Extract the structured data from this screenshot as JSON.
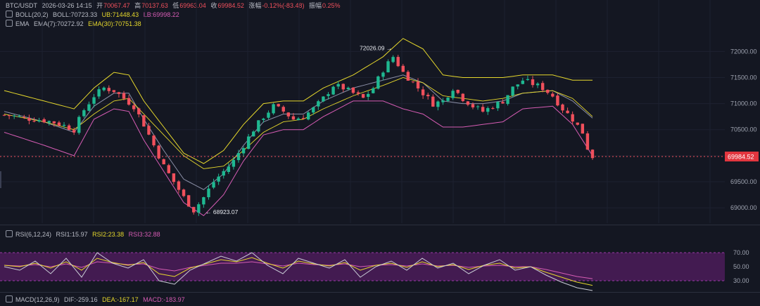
{
  "header": {
    "symbol": "BTC/USDT",
    "datetime": "2026-03-26 14:15",
    "open_label": "开",
    "open_value": "70067.47",
    "high_label": "高",
    "high_value": "70137.63",
    "low_label": "低",
    "low_value": "69963.04",
    "close_label": "收",
    "close_value": "69984.52",
    "change_label": "涨幅",
    "change_value": "-0.12%(-83.48)",
    "amplitude_label": "振幅",
    "amplitude_value": "0.25%"
  },
  "indicators": {
    "boll": {
      "name": "BOLL(20,2)",
      "mid": "BOLL:70723.33",
      "ub": "UB:71448.43",
      "lb": "LB:69998.22"
    },
    "ema": {
      "name": "EMA",
      "ema7": "EMA(7):70272.92",
      "ema30": "EMA(30):70751.38"
    },
    "rsi": {
      "name": "RSI(6,12,24)",
      "rsi1": "RSI1:15.97",
      "rsi2": "RSI2:23.38",
      "rsi3": "RSI3:32.88"
    },
    "macd": {
      "name": "MACD(12,26,9)",
      "dif": "DIF:-259.16",
      "dea": "DEA:-167.17",
      "macd": "MACD:-183.97"
    }
  },
  "colors": {
    "background": "#141722",
    "up": "#1fb891",
    "down": "#f0505c",
    "boll_band": "#e6d82c",
    "boll_lower": "#d65cb4",
    "ema_line": "#8c90a8",
    "rsi_band": "#6a1f78"
  },
  "chart_data": {
    "type": "candlestick",
    "price_axis_ticks": [
      "72000.00",
      "71500.00",
      "71000.00",
      "70500.00",
      "70000.00",
      "69500.00",
      "69000.00"
    ],
    "price_range": [
      68880,
      72450
    ],
    "current_price": "69984.52",
    "annotations": {
      "high": {
        "text": "72026.09 →",
        "value": 72026.09
      },
      "low": {
        "text": "← 68923.07",
        "value": 68923.07
      }
    },
    "close_path": [
      [
        0,
        70780
      ],
      [
        2,
        70760
      ],
      [
        4,
        70720
      ],
      [
        6,
        70700
      ],
      [
        8,
        70680
      ],
      [
        10,
        70640
      ],
      [
        12,
        70580
      ],
      [
        14,
        70500
      ],
      [
        16,
        70880
      ],
      [
        18,
        71150
      ],
      [
        20,
        71300
      ],
      [
        22,
        71250
      ],
      [
        24,
        71100
      ],
      [
        26,
        70950
      ],
      [
        28,
        70600
      ],
      [
        30,
        70200
      ],
      [
        32,
        69800
      ],
      [
        34,
        69500
      ],
      [
        36,
        69200
      ],
      [
        38,
        68950
      ],
      [
        40,
        69200
      ],
      [
        42,
        69500
      ],
      [
        44,
        69700
      ],
      [
        46,
        69900
      ],
      [
        48,
        70200
      ],
      [
        50,
        70500
      ],
      [
        52,
        70750
      ],
      [
        54,
        70950
      ],
      [
        56,
        70850
      ],
      [
        58,
        70700
      ],
      [
        60,
        70750
      ],
      [
        62,
        70900
      ],
      [
        64,
        71100
      ],
      [
        66,
        71350
      ],
      [
        68,
        71300
      ],
      [
        70,
        71200
      ],
      [
        72,
        71100
      ],
      [
        74,
        71300
      ],
      [
        76,
        71650
      ],
      [
        78,
        71900
      ],
      [
        80,
        71600
      ],
      [
        82,
        71400
      ],
      [
        84,
        71200
      ],
      [
        86,
        71000
      ],
      [
        88,
        71050
      ],
      [
        90,
        71300
      ],
      [
        92,
        71100
      ],
      [
        94,
        70950
      ],
      [
        96,
        70850
      ],
      [
        98,
        70950
      ],
      [
        100,
        71050
      ],
      [
        102,
        71300
      ],
      [
        104,
        71450
      ],
      [
        106,
        71380
      ],
      [
        108,
        71300
      ],
      [
        110,
        71150
      ],
      [
        112,
        70900
      ],
      [
        114,
        70700
      ],
      [
        116,
        70450
      ],
      [
        117,
        70150
      ],
      [
        118,
        69984.52
      ]
    ],
    "bands": {
      "upper": [
        [
          0,
          71250
        ],
        [
          8,
          71050
        ],
        [
          14,
          70900
        ],
        [
          18,
          71300
        ],
        [
          22,
          71600
        ],
        [
          25,
          71550
        ],
        [
          28,
          71050
        ],
        [
          32,
          70550
        ],
        [
          36,
          70050
        ],
        [
          40,
          69850
        ],
        [
          44,
          70100
        ],
        [
          48,
          70600
        ],
        [
          52,
          71000
        ],
        [
          56,
          71050
        ],
        [
          60,
          71050
        ],
        [
          64,
          71300
        ],
        [
          70,
          71550
        ],
        [
          76,
          71900
        ],
        [
          80,
          72250
        ],
        [
          84,
          72050
        ],
        [
          88,
          71550
        ],
        [
          92,
          71500
        ],
        [
          96,
          71500
        ],
        [
          100,
          71500
        ],
        [
          104,
          71550
        ],
        [
          110,
          71550
        ],
        [
          114,
          71450
        ],
        [
          118,
          71448.43
        ]
      ],
      "lower": [
        [
          0,
          70450
        ],
        [
          8,
          70200
        ],
        [
          14,
          70000
        ],
        [
          18,
          70700
        ],
        [
          22,
          70900
        ],
        [
          25,
          70850
        ],
        [
          28,
          70300
        ],
        [
          32,
          69700
        ],
        [
          36,
          69100
        ],
        [
          40,
          68850
        ],
        [
          44,
          69250
        ],
        [
          48,
          69900
        ],
        [
          52,
          70400
        ],
        [
          56,
          70500
        ],
        [
          60,
          70500
        ],
        [
          64,
          70750
        ],
        [
          70,
          71050
        ],
        [
          76,
          71050
        ],
        [
          80,
          70900
        ],
        [
          84,
          70800
        ],
        [
          88,
          70550
        ],
        [
          92,
          70550
        ],
        [
          96,
          70600
        ],
        [
          100,
          70650
        ],
        [
          104,
          70900
        ],
        [
          110,
          70950
        ],
        [
          114,
          70600
        ],
        [
          118,
          69998.22
        ]
      ],
      "mid": [
        [
          0,
          70850
        ],
        [
          8,
          70650
        ],
        [
          14,
          70450
        ],
        [
          18,
          70950
        ],
        [
          22,
          71200
        ],
        [
          25,
          71200
        ],
        [
          28,
          70700
        ],
        [
          32,
          70100
        ],
        [
          36,
          69550
        ],
        [
          40,
          69350
        ],
        [
          44,
          69650
        ],
        [
          48,
          70200
        ],
        [
          52,
          70650
        ],
        [
          56,
          70800
        ],
        [
          60,
          70800
        ],
        [
          64,
          71050
        ],
        [
          70,
          71300
        ],
        [
          76,
          71450
        ],
        [
          80,
          71550
        ],
        [
          84,
          71400
        ],
        [
          88,
          71050
        ],
        [
          92,
          71000
        ],
        [
          96,
          71000
        ],
        [
          100,
          71050
        ],
        [
          104,
          71200
        ],
        [
          110,
          71250
        ],
        [
          114,
          71050
        ],
        [
          118,
          70723.33
        ]
      ],
      "ema30": [
        [
          0,
          70800
        ],
        [
          8,
          70650
        ],
        [
          14,
          70500
        ],
        [
          18,
          70800
        ],
        [
          22,
          71050
        ],
        [
          25,
          71100
        ],
        [
          28,
          70800
        ],
        [
          32,
          70400
        ],
        [
          36,
          70000
        ],
        [
          40,
          69750
        ],
        [
          44,
          69800
        ],
        [
          48,
          70100
        ],
        [
          52,
          70450
        ],
        [
          56,
          70650
        ],
        [
          60,
          70700
        ],
        [
          64,
          70900
        ],
        [
          70,
          71150
        ],
        [
          76,
          71350
        ],
        [
          80,
          71500
        ],
        [
          84,
          71400
        ],
        [
          88,
          71150
        ],
        [
          92,
          71100
        ],
        [
          96,
          71050
        ],
        [
          100,
          71100
        ],
        [
          104,
          71200
        ],
        [
          110,
          71250
        ],
        [
          114,
          71100
        ],
        [
          118,
          70751.38
        ]
      ]
    },
    "rsi": {
      "ticks": [
        "70.00",
        "50.00",
        "30.00"
      ],
      "range": [
        10,
        90
      ],
      "rsi1": [
        50,
        45,
        58,
        40,
        62,
        35,
        70,
        55,
        48,
        60,
        30,
        25,
        45,
        55,
        65,
        58,
        70,
        52,
        40,
        62,
        55,
        48,
        60,
        35,
        50,
        58,
        45,
        62,
        48,
        55,
        40,
        52,
        60,
        45,
        50,
        38,
        28,
        20,
        15.97
      ],
      "rsi2": [
        52,
        50,
        55,
        48,
        57,
        45,
        62,
        56,
        52,
        56,
        40,
        36,
        48,
        54,
        60,
        57,
        63,
        55,
        48,
        58,
        54,
        51,
        56,
        45,
        52,
        55,
        49,
        57,
        50,
        53,
        46,
        52,
        55,
        48,
        50,
        42,
        35,
        28,
        23.38
      ],
      "rsi3": [
        52,
        51,
        53,
        50,
        54,
        49,
        57,
        55,
        53,
        54,
        47,
        44,
        49,
        52,
        55,
        55,
        57,
        54,
        51,
        55,
        53,
        52,
        54,
        50,
        52,
        53,
        51,
        54,
        51,
        52,
        49,
        51,
        52,
        50,
        50,
        46,
        41,
        36,
        32.88
      ]
    }
  }
}
